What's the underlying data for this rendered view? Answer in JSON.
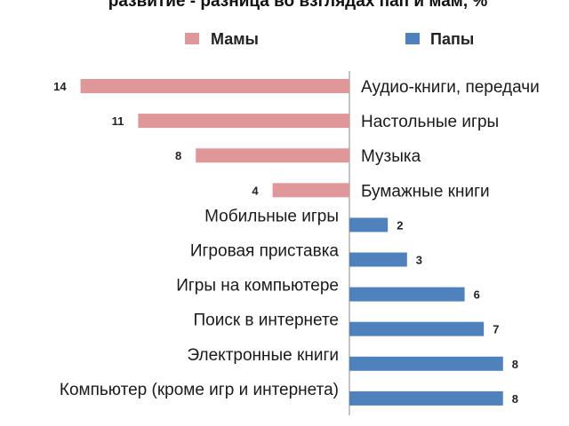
{
  "chart_data": {
    "type": "bar",
    "orientation": "horizontal-diverging",
    "title": "развитие - разница во взглядах пап и мам, %",
    "legend": [
      {
        "name": "Мамы",
        "color": "#e0979a"
      },
      {
        "name": "Папы",
        "color": "#4f81bd"
      }
    ],
    "legend_position": "top",
    "categories": [
      "Аудио-книги, передачи",
      "Настольные игры",
      "Музыка",
      "Бумажные книги",
      "Мобильные игры",
      "Игровая приставка",
      "Игры на компьютере",
      "Поиск в интернете",
      "Электронные книги",
      "Компьютер (кроме игр и интернета)"
    ],
    "series": [
      {
        "name": "Мамы",
        "values": [
          14,
          11,
          8,
          4,
          null,
          null,
          null,
          null,
          null,
          null
        ]
      },
      {
        "name": "Папы",
        "values": [
          null,
          null,
          null,
          null,
          2,
          3,
          6,
          7,
          8,
          8
        ]
      }
    ],
    "value_labels": [
      "14",
      "11",
      "8",
      "4",
      "2",
      "3",
      "6",
      "7",
      "8",
      "8"
    ],
    "grid": false
  }
}
